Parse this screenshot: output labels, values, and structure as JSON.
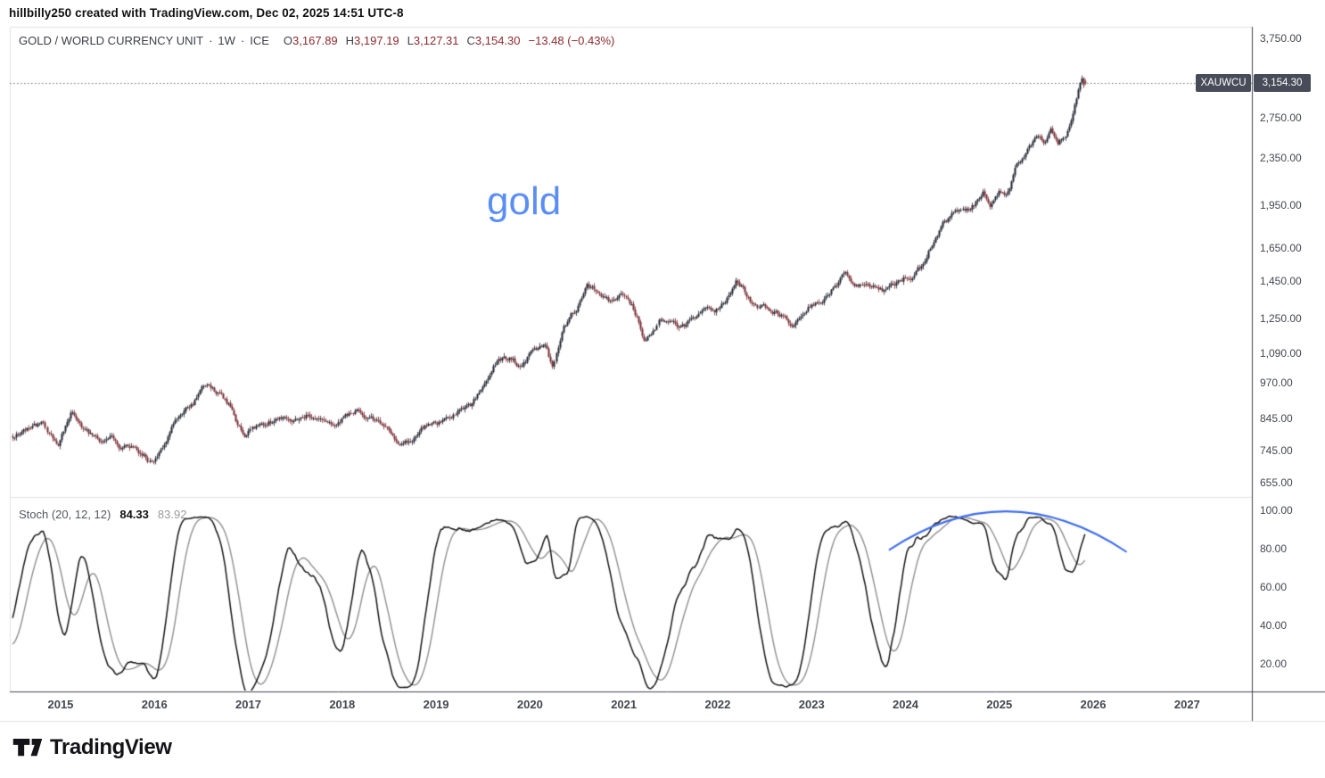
{
  "attribution": "hillbilly250 created with TradingView.com, Dec 02, 2025 14:51 UTC-8",
  "legend": {
    "symbol": "GOLD / WORLD CURRENCY UNIT",
    "sep1": "·",
    "interval": "1W",
    "sep2": "·",
    "exchange": "ICE",
    "ohlc": {
      "o_label": "O",
      "o": "3,167.89",
      "h_label": "H",
      "h": "3,197.19",
      "l_label": "L",
      "l": "3,127.31",
      "c_label": "C",
      "c": "3,154.30",
      "change": "−13.48 (−0.43%)"
    }
  },
  "watermark": {
    "text": "gold"
  },
  "price_badge": {
    "symbol": "XAUWCU",
    "price": "3,154.30"
  },
  "stoch_legend": {
    "title": "Stoch (20, 12, 12)",
    "k": "84.33",
    "d": "83.92"
  },
  "footer": {
    "logo_text": "TradingView"
  },
  "colors": {
    "up": "#1e222d",
    "down": "#772b31",
    "neg_text": "#8c2a2d",
    "watermark_blue": "#5b8ef5",
    "arc_blue": "#3e6cf0",
    "k_line": "#161616",
    "d_line": "#8f8f8f",
    "badge_bg": "#474c58",
    "badge_text": "#ffffff",
    "axis_line_dark": "#434750",
    "panel_border": "#e0e2e6",
    "axis_text": "#44474f",
    "legend_text": "#3c3f48",
    "stoch_title": "#55575e",
    "stoch_d_text": "#9a9a9a",
    "dotted_line": "#6b6e76",
    "attribution_text": "#101010",
    "logo_color": "#131318"
  },
  "chart_data": {
    "type": "candlestick",
    "symbol": "XAUWCU",
    "description": "GOLD / WORLD CURRENCY UNIT",
    "interval": "1W",
    "exchange": "ICE",
    "grid": "off",
    "x_domain_years": [
      2014.459,
      2027.69
    ],
    "year_labels": [
      "2015",
      "2016",
      "2017",
      "2018",
      "2019",
      "2020",
      "2021",
      "2022",
      "2023",
      "2024",
      "2025",
      "2026",
      "2027"
    ],
    "price_panel": {
      "scale": "log",
      "y_domain": [
        620,
        3930
      ],
      "ticks": [
        {
          "label": "3,750.00",
          "value": 3750
        },
        {
          "label": "2,750.00",
          "value": 2750
        },
        {
          "label": "2,350.00",
          "value": 2350
        },
        {
          "label": "1,950.00",
          "value": 1950
        },
        {
          "label": "1,650.00",
          "value": 1650
        },
        {
          "label": "1,450.00",
          "value": 1450
        },
        {
          "label": "1,250.00",
          "value": 1250
        },
        {
          "label": "1,090.00",
          "value": 1090
        },
        {
          "label": "970.00",
          "value": 970
        },
        {
          "label": "845.00",
          "value": 845
        },
        {
          "label": "745.00",
          "value": 745
        },
        {
          "label": "655.00",
          "value": 655
        }
      ],
      "last_price": 3154.3,
      "last_bar": {
        "open": 3167.89,
        "high": 3197.19,
        "low": 3127.31,
        "close": 3154.3,
        "change": -13.48,
        "change_pct": -0.43
      },
      "bars_start_year": 2014.47,
      "bars_end_year": 2025.925,
      "weekly_anchors": [
        [
          2013.55,
          780
        ],
        [
          2014.0,
          772
        ],
        [
          2014.45,
          792
        ],
        [
          2014.6,
          815
        ],
        [
          2014.8,
          788
        ],
        [
          2014.97,
          742
        ],
        [
          2015.1,
          855
        ],
        [
          2015.3,
          805
        ],
        [
          2015.5,
          768
        ],
        [
          2015.65,
          745
        ],
        [
          2015.8,
          762
        ],
        [
          2015.93,
          718
        ],
        [
          2016.1,
          775
        ],
        [
          2016.3,
          872
        ],
        [
          2016.5,
          942
        ],
        [
          2016.65,
          905
        ],
        [
          2016.8,
          878
        ],
        [
          2016.95,
          790
        ],
        [
          2017.1,
          822
        ],
        [
          2017.3,
          852
        ],
        [
          2017.45,
          838
        ],
        [
          2017.62,
          868
        ],
        [
          2017.8,
          842
        ],
        [
          2018.0,
          860
        ],
        [
          2018.2,
          852
        ],
        [
          2018.42,
          818
        ],
        [
          2018.62,
          782
        ],
        [
          2018.8,
          805
        ],
        [
          2019.0,
          842
        ],
        [
          2019.2,
          852
        ],
        [
          2019.35,
          880
        ],
        [
          2019.5,
          968
        ],
        [
          2019.65,
          1068
        ],
        [
          2019.78,
          1088
        ],
        [
          2019.9,
          1048
        ],
        [
          2020.05,
          1092
        ],
        [
          2020.17,
          1128
        ],
        [
          2020.24,
          1035
        ],
        [
          2020.35,
          1218
        ],
        [
          2020.5,
          1345
        ],
        [
          2020.6,
          1452
        ],
        [
          2020.72,
          1388
        ],
        [
          2020.85,
          1338
        ],
        [
          2021.0,
          1352
        ],
        [
          2021.12,
          1262
        ],
        [
          2021.22,
          1172
        ],
        [
          2021.38,
          1282
        ],
        [
          2021.5,
          1262
        ],
        [
          2021.62,
          1232
        ],
        [
          2021.78,
          1258
        ],
        [
          2021.9,
          1248
        ],
        [
          2022.05,
          1315
        ],
        [
          2022.2,
          1462
        ],
        [
          2022.35,
          1392
        ],
        [
          2022.5,
          1318
        ],
        [
          2022.65,
          1262
        ],
        [
          2022.78,
          1232
        ],
        [
          2022.9,
          1272
        ],
        [
          2023.05,
          1358
        ],
        [
          2023.2,
          1415
        ],
        [
          2023.35,
          1478
        ],
        [
          2023.5,
          1432
        ],
        [
          2023.65,
          1398
        ],
        [
          2023.78,
          1382
        ],
        [
          2023.9,
          1458
        ],
        [
          2024.05,
          1502
        ],
        [
          2024.15,
          1552
        ],
        [
          2024.28,
          1715
        ],
        [
          2024.4,
          1782
        ],
        [
          2024.5,
          1842
        ],
        [
          2024.62,
          1905
        ],
        [
          2024.72,
          1948
        ],
        [
          2024.82,
          2045
        ],
        [
          2024.9,
          2010
        ],
        [
          2025.0,
          2128
        ],
        [
          2025.08,
          2068
        ],
        [
          2025.18,
          2262
        ],
        [
          2025.3,
          2398
        ],
        [
          2025.4,
          2555
        ],
        [
          2025.48,
          2470
        ],
        [
          2025.55,
          2625
        ],
        [
          2025.62,
          2475
        ],
        [
          2025.7,
          2618
        ],
        [
          2025.78,
          2905
        ],
        [
          2025.84,
          3135
        ],
        [
          2025.88,
          3240
        ],
        [
          2025.905,
          3085
        ],
        [
          2025.925,
          3154.3
        ]
      ]
    },
    "stoch_panel": {
      "indicator": "Stochastic",
      "params": [
        20,
        12,
        12
      ],
      "k": 84.33,
      "d": 83.92,
      "y_domain": [
        5.6,
        107
      ],
      "ticks": [
        {
          "label": "100.00",
          "value": 100
        },
        {
          "label": "80.00",
          "value": 80
        },
        {
          "label": "60.00",
          "value": 60
        },
        {
          "label": "40.00",
          "value": 40
        },
        {
          "label": "20.00",
          "value": 20
        }
      ],
      "arc_annotation": {
        "start": [
          2023.83,
          79.5
        ],
        "control": [
          2025.08,
          120
        ],
        "end": [
          2026.35,
          78.5
        ]
      }
    }
  }
}
